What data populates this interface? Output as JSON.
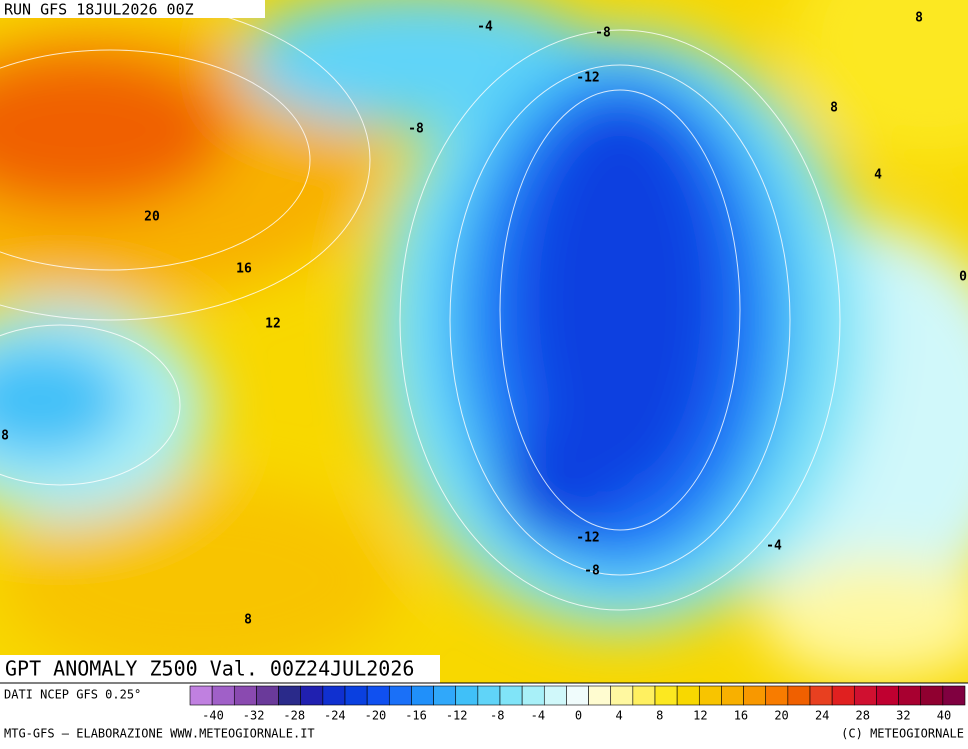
{
  "header": {
    "run": "RUN GFS 18JUL2026 00Z",
    "title": "GPT ANOMALY Z500 Val. 00Z24JUL2026"
  },
  "contour_labels": [
    -4,
    -8,
    -12,
    -8,
    8,
    8,
    4,
    0,
    20,
    16,
    12,
    8,
    -12,
    -8,
    -4,
    8
  ],
  "colorbar": {
    "source": "DATI NCEP GFS 0.25°",
    "colors": [
      "#c080e0",
      "#a060c8",
      "#8a4ab0",
      "#6a3a9a",
      "#2a2a8a",
      "#2020b0",
      "#1030d0",
      "#0a40e0",
      "#1050f0",
      "#1a70f8",
      "#2090fa",
      "#30a8fa",
      "#40c0f8",
      "#60d4f8",
      "#80e4f8",
      "#a8f0f8",
      "#d0f8fa",
      "#f0fcfc",
      "#fffcd0",
      "#fff8a0",
      "#fff060",
      "#fce820",
      "#f8d800",
      "#f8c400",
      "#f8b000",
      "#f89800",
      "#f87c00",
      "#f06000",
      "#e84020",
      "#e02020",
      "#d01030",
      "#c00030",
      "#a80030",
      "#900030",
      "#800040"
    ],
    "ticks": [
      -40,
      -32,
      -28,
      -24,
      -20,
      -16,
      -12,
      -8,
      -4,
      0,
      4,
      8,
      12,
      16,
      20,
      24,
      28,
      32,
      40
    ]
  },
  "footer": {
    "left": "MTG-GFS — ELABORAZIONE WWW.METEOGIORNALE.IT",
    "right": "(C) METEOGIORNALE"
  }
}
